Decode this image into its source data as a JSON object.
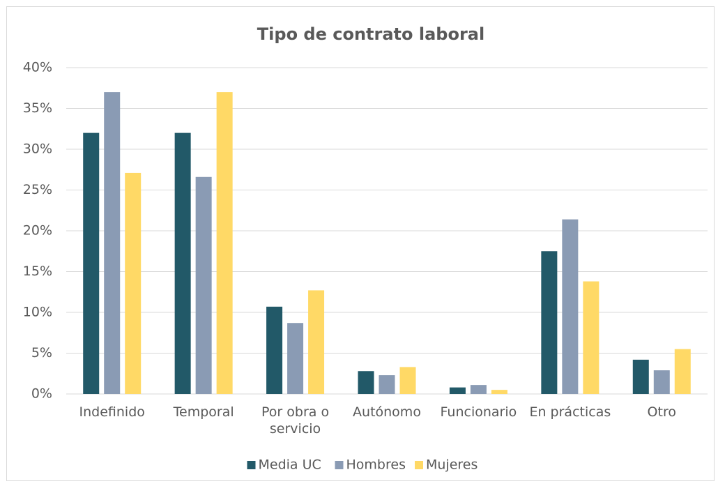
{
  "chart_data": {
    "type": "bar",
    "title": "Tipo de contrato laboral",
    "categories": [
      "Indefinido",
      "Temporal",
      "Por obra o servicio",
      "Autónomo",
      "Funcionario",
      "En prácticas",
      "Otro"
    ],
    "series": [
      {
        "name": "Media UC",
        "color": "#225968",
        "values": [
          32,
          32,
          10.7,
          2.8,
          0.8,
          17.5,
          4.2
        ]
      },
      {
        "name": "Hombres",
        "color": "#8a9bb4",
        "values": [
          37,
          26.6,
          8.7,
          2.3,
          1.1,
          21.4,
          2.9
        ]
      },
      {
        "name": "Mujeres",
        "color": "#ffd966",
        "values": [
          27.1,
          37,
          12.7,
          3.3,
          0.5,
          13.8,
          5.5
        ]
      }
    ],
    "ylim": [
      0,
      40
    ],
    "yticks": [
      {
        "value": 0,
        "label": "0%"
      },
      {
        "value": 5,
        "label": "5%"
      },
      {
        "value": 10,
        "label": "10%"
      },
      {
        "value": 15,
        "label": "15%"
      },
      {
        "value": 20,
        "label": "20%"
      },
      {
        "value": 25,
        "label": "25%"
      },
      {
        "value": 30,
        "label": "30%"
      },
      {
        "value": 35,
        "label": "35%"
      },
      {
        "value": 40,
        "label": "40%"
      }
    ],
    "grid": true,
    "legend": "bottom"
  }
}
